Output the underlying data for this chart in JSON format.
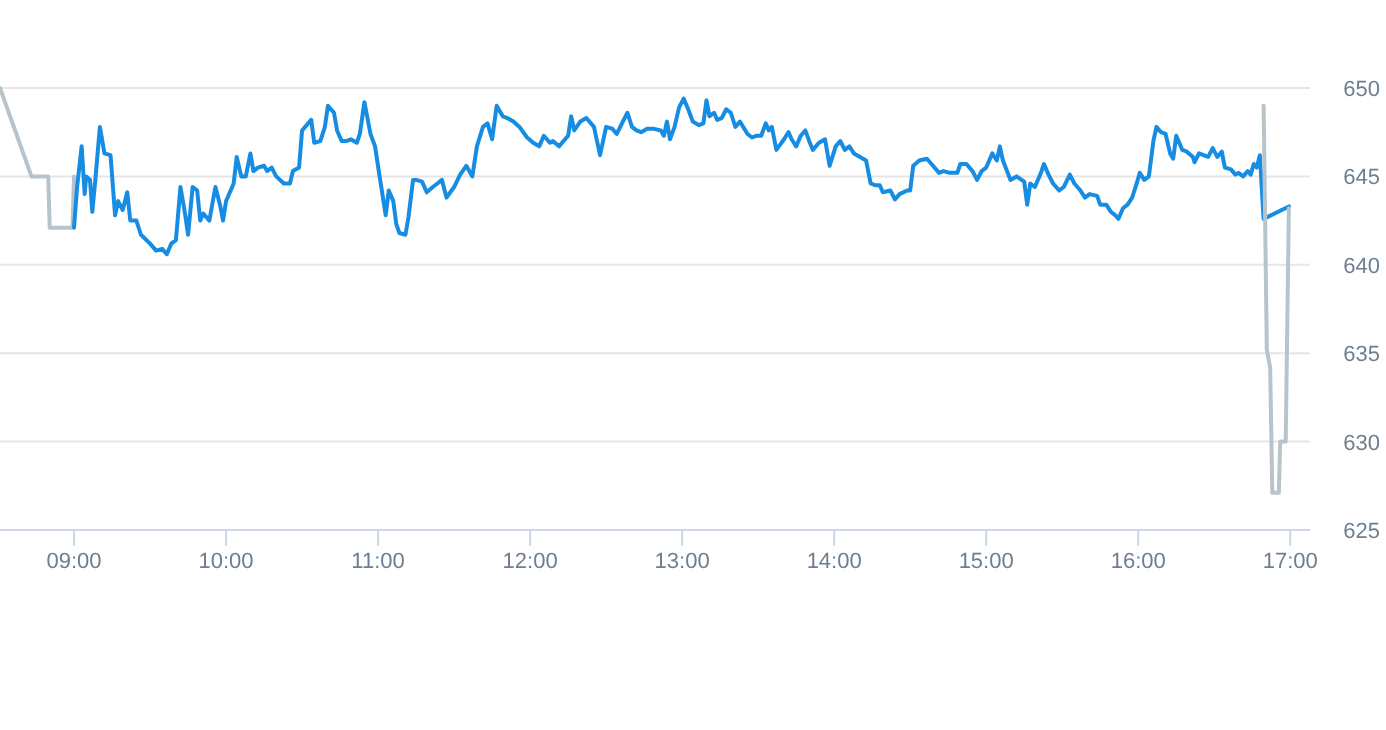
{
  "chart_data": {
    "type": "line",
    "xlim": [
      8.513,
      17.13
    ],
    "ylim": [
      625,
      650
    ],
    "xticks": [
      {
        "value": 9,
        "label": "09:00"
      },
      {
        "value": 10,
        "label": "10:00"
      },
      {
        "value": 11,
        "label": "11:00"
      },
      {
        "value": 12,
        "label": "12:00"
      },
      {
        "value": 13,
        "label": "13:00"
      },
      {
        "value": 14,
        "label": "14:00"
      },
      {
        "value": 15,
        "label": "15:00"
      },
      {
        "value": 16,
        "label": "16:00"
      },
      {
        "value": 17,
        "label": "17:00"
      }
    ],
    "yticks": [
      625,
      630,
      635,
      640,
      645,
      650
    ],
    "grid": "y",
    "marker": "none",
    "line_style": "solid",
    "series": [
      {
        "color": "#b8c4cc",
        "x": [
          8.513,
          8.72,
          8.83,
          8.84,
          8.99,
          9.0
        ],
        "values": [
          650,
          645,
          645,
          642.1,
          642.1,
          645
        ]
      },
      {
        "color": "#168de2",
        "x": [
          9.0,
          9.02,
          9.05,
          9.07,
          9.08,
          9.105,
          9.12,
          9.14,
          9.17,
          9.2,
          9.24,
          9.27,
          9.29,
          9.32,
          9.35,
          9.37,
          9.41,
          9.44,
          9.5,
          9.54,
          9.58,
          9.61,
          9.64,
          9.67,
          9.7,
          9.73,
          9.75,
          9.78,
          9.81,
          9.83,
          9.85,
          9.89,
          9.93,
          9.96,
          9.98,
          10.0,
          10.05,
          10.07,
          10.1,
          10.13,
          10.16,
          10.18,
          10.21,
          10.25,
          10.27,
          10.3,
          10.33,
          10.38,
          10.42,
          10.44,
          10.48,
          10.5,
          10.53,
          10.56,
          10.58,
          10.62,
          10.65,
          10.67,
          10.71,
          10.73,
          10.76,
          10.79,
          10.82,
          10.86,
          10.88,
          10.91,
          10.95,
          10.98,
          11.01,
          11.05,
          11.07,
          11.1,
          11.12,
          11.14,
          11.18,
          11.2,
          11.23,
          11.25,
          11.29,
          11.32,
          11.36,
          11.39,
          11.42,
          11.45,
          11.5,
          11.54,
          11.58,
          11.62,
          11.65,
          11.69,
          11.72,
          11.75,
          11.78,
          11.82,
          11.85,
          11.89,
          11.93,
          11.98,
          12.02,
          12.06,
          12.09,
          12.13,
          12.15,
          12.19,
          12.22,
          12.25,
          12.27,
          12.29,
          12.33,
          12.37,
          12.42,
          12.46,
          12.5,
          12.54,
          12.57,
          12.61,
          12.64,
          12.67,
          12.7,
          12.73,
          12.77,
          12.81,
          12.86,
          12.88,
          12.9,
          12.92,
          12.95,
          12.98,
          13.01,
          13.04,
          13.07,
          13.11,
          13.14,
          13.16,
          13.18,
          13.21,
          13.23,
          13.26,
          13.29,
          13.32,
          13.35,
          13.38,
          13.43,
          13.46,
          13.49,
          13.52,
          13.55,
          13.57,
          13.59,
          13.62,
          13.67,
          13.7,
          13.72,
          13.75,
          13.78,
          13.81,
          13.84,
          13.86,
          13.9,
          13.94,
          13.97,
          14.01,
          14.04,
          14.07,
          14.1,
          14.13,
          14.17,
          14.21,
          14.24,
          14.27,
          14.3,
          14.32,
          14.37,
          14.4,
          14.43,
          14.48,
          14.5,
          14.52,
          14.56,
          14.61,
          14.65,
          14.69,
          14.72,
          14.76,
          14.81,
          14.83,
          14.87,
          14.91,
          14.94,
          14.97,
          15.0,
          15.04,
          15.07,
          15.09,
          15.11,
          15.16,
          15.2,
          15.25,
          15.27,
          15.29,
          15.32,
          15.36,
          15.38,
          15.41,
          15.44,
          15.48,
          15.51,
          15.55,
          15.58,
          15.62,
          15.65,
          15.68,
          15.73,
          15.75,
          15.79,
          15.82,
          15.85,
          15.87,
          15.9,
          15.93,
          15.96,
          15.99,
          16.01,
          16.04,
          16.07,
          16.1,
          16.12,
          16.15,
          16.18,
          16.21,
          16.23,
          16.25,
          16.29,
          16.32,
          16.36,
          16.37,
          16.4,
          16.43,
          16.46,
          16.49,
          16.52,
          16.55,
          16.57,
          16.61,
          16.64,
          16.66,
          16.69,
          16.72,
          16.74,
          16.76,
          16.78,
          16.8,
          16.825,
          16.991
        ],
        "values": [
          642.1,
          644.4,
          646.7,
          644,
          645,
          644.8,
          643,
          644.8,
          647.8,
          646.3,
          646.2,
          642.8,
          643.6,
          643.1,
          644.1,
          642.5,
          642.5,
          641.7,
          641.2,
          640.8,
          640.9,
          640.6,
          641.2,
          641.4,
          644.4,
          642.9,
          641.7,
          644.4,
          644.2,
          642.5,
          642.9,
          642.5,
          644.4,
          643.4,
          642.5,
          643.6,
          644.6,
          646.1,
          645,
          645,
          646.3,
          645.3,
          645.5,
          645.6,
          645.3,
          645.5,
          645,
          644.6,
          644.6,
          645.3,
          645.5,
          647.6,
          647.9,
          648.2,
          646.9,
          647,
          647.8,
          649,
          648.6,
          647.6,
          647,
          647,
          647.1,
          646.9,
          647.4,
          649.2,
          647.4,
          646.7,
          645,
          642.8,
          644.2,
          643.6,
          642.3,
          641.8,
          641.7,
          642.7,
          644.8,
          644.8,
          644.7,
          644.1,
          644.4,
          644.6,
          644.8,
          643.8,
          644.4,
          645.1,
          645.6,
          645,
          646.7,
          647.8,
          648,
          647.1,
          649,
          648.4,
          648.3,
          648.1,
          647.8,
          647.2,
          646.9,
          646.7,
          647.3,
          646.9,
          647,
          646.7,
          647,
          647.3,
          648.4,
          647.6,
          648.1,
          648.3,
          647.8,
          646.2,
          647.8,
          647.7,
          647.4,
          648.1,
          648.6,
          647.8,
          647.6,
          647.5,
          647.7,
          647.7,
          647.6,
          647.3,
          648.1,
          647.1,
          647.8,
          648.9,
          649.4,
          648.8,
          648.1,
          647.9,
          648,
          649.3,
          648.4,
          648.6,
          648.2,
          648.3,
          648.8,
          648.6,
          647.8,
          648.1,
          647.4,
          647.2,
          647.3,
          647.3,
          648,
          647.6,
          647.8,
          646.5,
          647.1,
          647.5,
          647.1,
          646.7,
          647.3,
          647.6,
          646.9,
          646.5,
          646.9,
          647.1,
          645.6,
          646.7,
          647,
          646.5,
          646.7,
          646.3,
          646.1,
          645.9,
          644.6,
          644.5,
          644.5,
          644.1,
          644.2,
          643.7,
          644,
          644.2,
          644.2,
          645.6,
          645.9,
          646,
          645.6,
          645.2,
          645.3,
          645.2,
          645.2,
          645.7,
          645.7,
          645.3,
          644.8,
          645.3,
          645.5,
          646.3,
          645.9,
          646.7,
          645.9,
          644.8,
          645,
          644.7,
          643.4,
          644.6,
          644.4,
          645.2,
          645.7,
          645.1,
          644.6,
          644.2,
          644.4,
          645.1,
          644.6,
          644.2,
          643.8,
          644,
          643.9,
          643.4,
          643.4,
          643,
          642.8,
          642.6,
          643.2,
          643.4,
          643.8,
          644.6,
          645.2,
          644.8,
          645,
          647,
          647.8,
          647.5,
          647.4,
          646.3,
          646,
          647.3,
          646.5,
          646.4,
          646.1,
          645.8,
          646.3,
          646.2,
          646.1,
          646.6,
          646.1,
          646.4,
          645.5,
          645.4,
          645.1,
          645.2,
          645,
          645.3,
          645.1,
          645.7,
          645.5,
          646.2,
          642.6,
          643.3
        ]
      },
      {
        "color": "#b8c4cc",
        "x": [
          16.825,
          16.846,
          16.868,
          16.882,
          16.925,
          16.934,
          16.97,
          16.991
        ],
        "values": [
          649,
          635.2,
          634.2,
          627.1,
          627.1,
          630,
          630,
          643.2
        ]
      }
    ]
  }
}
